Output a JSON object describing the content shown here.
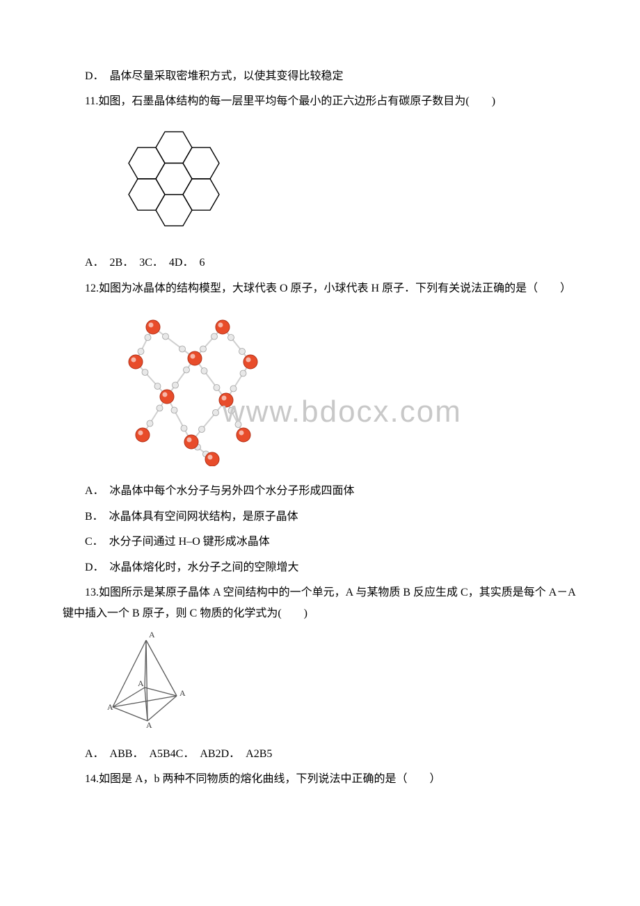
{
  "q10": {
    "optionD": "D．　晶体尽量采取密堆积方式，以使其变得比较稳定"
  },
  "q11": {
    "stem": "11.如图，石墨晶体结构的每一层里平均每个最小的正六边形占有碳原子数目为(　　)",
    "options": "A．　2B．　3C．　4D．　6",
    "hex": {
      "stroke": "#000000",
      "strokeWidth": 1.4,
      "fill": "none"
    }
  },
  "q12": {
    "stem": "12.如图为冰晶体的结构模型，大球代表 O 原子，小球代表 H 原子．下列有关说法正确的是（　　）",
    "A": "A．　冰晶体中每个水分子与另外四个水分子形成四面体",
    "B": "B．　冰晶体具有空间网状结构，是原子晶体",
    "C": "C．　水分子间通过 H–O 键形成冰晶体",
    "D": "D．　冰晶体熔化时，水分子之间的空隙增大",
    "watermark": "www.bdocx.com",
    "ice": {
      "bigR": 10,
      "smallR": 4.5,
      "bigFill": "#e84c2a",
      "bigStroke": "#b03018",
      "smallFill": "#e8e8e8",
      "smallStroke": "#a0a0a0",
      "bondColor": "#cfcfcf",
      "bondWidth": 2
    }
  },
  "q13": {
    "stem": "13.如图所示是某原子晶体 A 空间结构中的一个单元，A 与某物质 B 反应生成 C，其实质是每个 A－A 键中插入一个 B 原子，则 C 物质的化学式为(　　)",
    "options": "A．　ABB．　A5B4C．　AB2D．　A2B5",
    "tetra": {
      "stroke": "#5a5a5a",
      "strokeWidth": 1.3,
      "label": "A",
      "labelColor": "#3a3a3a",
      "labelSize": 12
    }
  },
  "q14": {
    "stem": "14.如图是 A，b 两种不同物质的熔化曲线，下列说法中正确的是（　　）"
  }
}
